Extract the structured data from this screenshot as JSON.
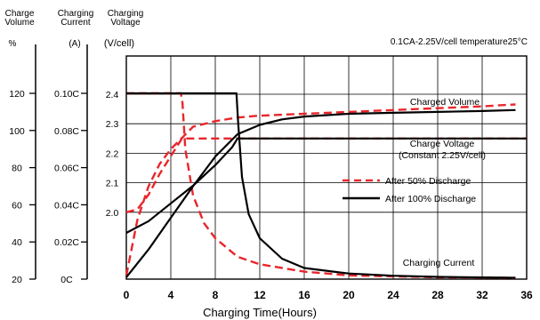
{
  "chart_data": {
    "type": "line",
    "note": "0.1CA-2.25V/cell   temperature25°C",
    "xlabel": "Charging Time(Hours)",
    "xlim": [
      0,
      36
    ],
    "x_ticks": [
      "0",
      "4",
      "8",
      "12",
      "16",
      "20",
      "24",
      "28",
      "32",
      "36"
    ],
    "axes": [
      {
        "key": "volume",
        "header": [
          "Charge",
          "Volume"
        ],
        "unit": "%",
        "range": [
          20,
          120
        ],
        "ticks": [
          "120",
          "100",
          "80",
          "60",
          "40",
          "20"
        ]
      },
      {
        "key": "current",
        "header": [
          "Charging",
          "Current"
        ],
        "unit": "(A)",
        "range": [
          0,
          0.1
        ],
        "ticks": [
          "0.10C",
          "0.08C",
          "0.06C",
          "0.04C",
          "0.02C",
          "0C"
        ]
      },
      {
        "key": "voltage",
        "header": [
          "Charging",
          "Voltage"
        ],
        "unit": "(V/cell)",
        "range": [
          1.9,
          2.4
        ],
        "ticks": [
          "2.4",
          "2.3",
          "2.2",
          "2.1",
          "2.0"
        ]
      }
    ],
    "curve_labels": {
      "charged_volume": "Charged Volume",
      "charge_voltage": [
        "Charge Voltage",
        "(Constant 2.25V/cell)"
      ],
      "charging_current": "Charging Current"
    },
    "series": [
      {
        "name": "After 50% Discharge",
        "style": "dashed",
        "color": "#e8262b",
        "curves": [
          {
            "quantity": "Charged Volume",
            "axis": "volume",
            "x": [
              0,
              1,
              2,
              3,
              4,
              5,
              6,
              8,
              10,
              12,
              16,
              20,
              24,
              28,
              32,
              35
            ],
            "y": [
              22,
              52,
              70,
              82,
              90,
              96,
              102,
              105,
              107,
              108,
              109,
              110,
              111,
              112,
              113,
              114
            ]
          },
          {
            "quantity": "Charge Voltage",
            "axis": "voltage",
            "x": [
              0,
              1,
              2,
              3,
              4,
              5,
              6,
              10,
              36
            ],
            "y": [
              2.0,
              2.01,
              2.06,
              2.13,
              2.19,
              2.25,
              2.25,
              2.25,
              2.25
            ]
          },
          {
            "quantity": "Charging Current",
            "axis": "current",
            "x": [
              0,
              4.9,
              5.05,
              5.3,
              6,
              7,
              8,
              10,
              12,
              16,
              20,
              24,
              28,
              32,
              35
            ],
            "y": [
              0.1,
              0.1,
              0.095,
              0.07,
              0.045,
              0.03,
              0.022,
              0.012,
              0.008,
              0.004,
              0.002,
              0.0015,
              0.001,
              0.0008,
              0.0006
            ]
          }
        ]
      },
      {
        "name": "After 100% Discharge",
        "style": "solid",
        "color": "#000000",
        "curves": [
          {
            "quantity": "Charged Volume",
            "axis": "volume",
            "x": [
              0,
              2,
              4,
              6,
              8,
              10,
              12,
              14,
              16,
              20,
              24,
              28,
              32,
              35
            ],
            "y": [
              21,
              36,
              53,
              70,
              86,
              98,
              103,
              106,
              107.5,
              109,
              109.5,
              110,
              110.5,
              111
            ]
          },
          {
            "quantity": "Charge Voltage",
            "axis": "voltage",
            "x": [
              0,
              2,
              4,
              6,
              8,
              9.5,
              10,
              36
            ],
            "y": [
              1.93,
              1.97,
              2.03,
              2.09,
              2.16,
              2.22,
              2.25,
              2.25
            ]
          },
          {
            "quantity": "Charging Current",
            "axis": "current",
            "x": [
              0,
              9.9,
              10.05,
              10.4,
              11,
              12,
              14,
              16,
              20,
              24,
              28,
              32,
              35
            ],
            "y": [
              0.1,
              0.1,
              0.085,
              0.055,
              0.035,
              0.022,
              0.011,
              0.006,
              0.003,
              0.0018,
              0.0012,
              0.0009,
              0.0007
            ]
          }
        ]
      }
    ],
    "grid": true,
    "legend_position": "right"
  }
}
